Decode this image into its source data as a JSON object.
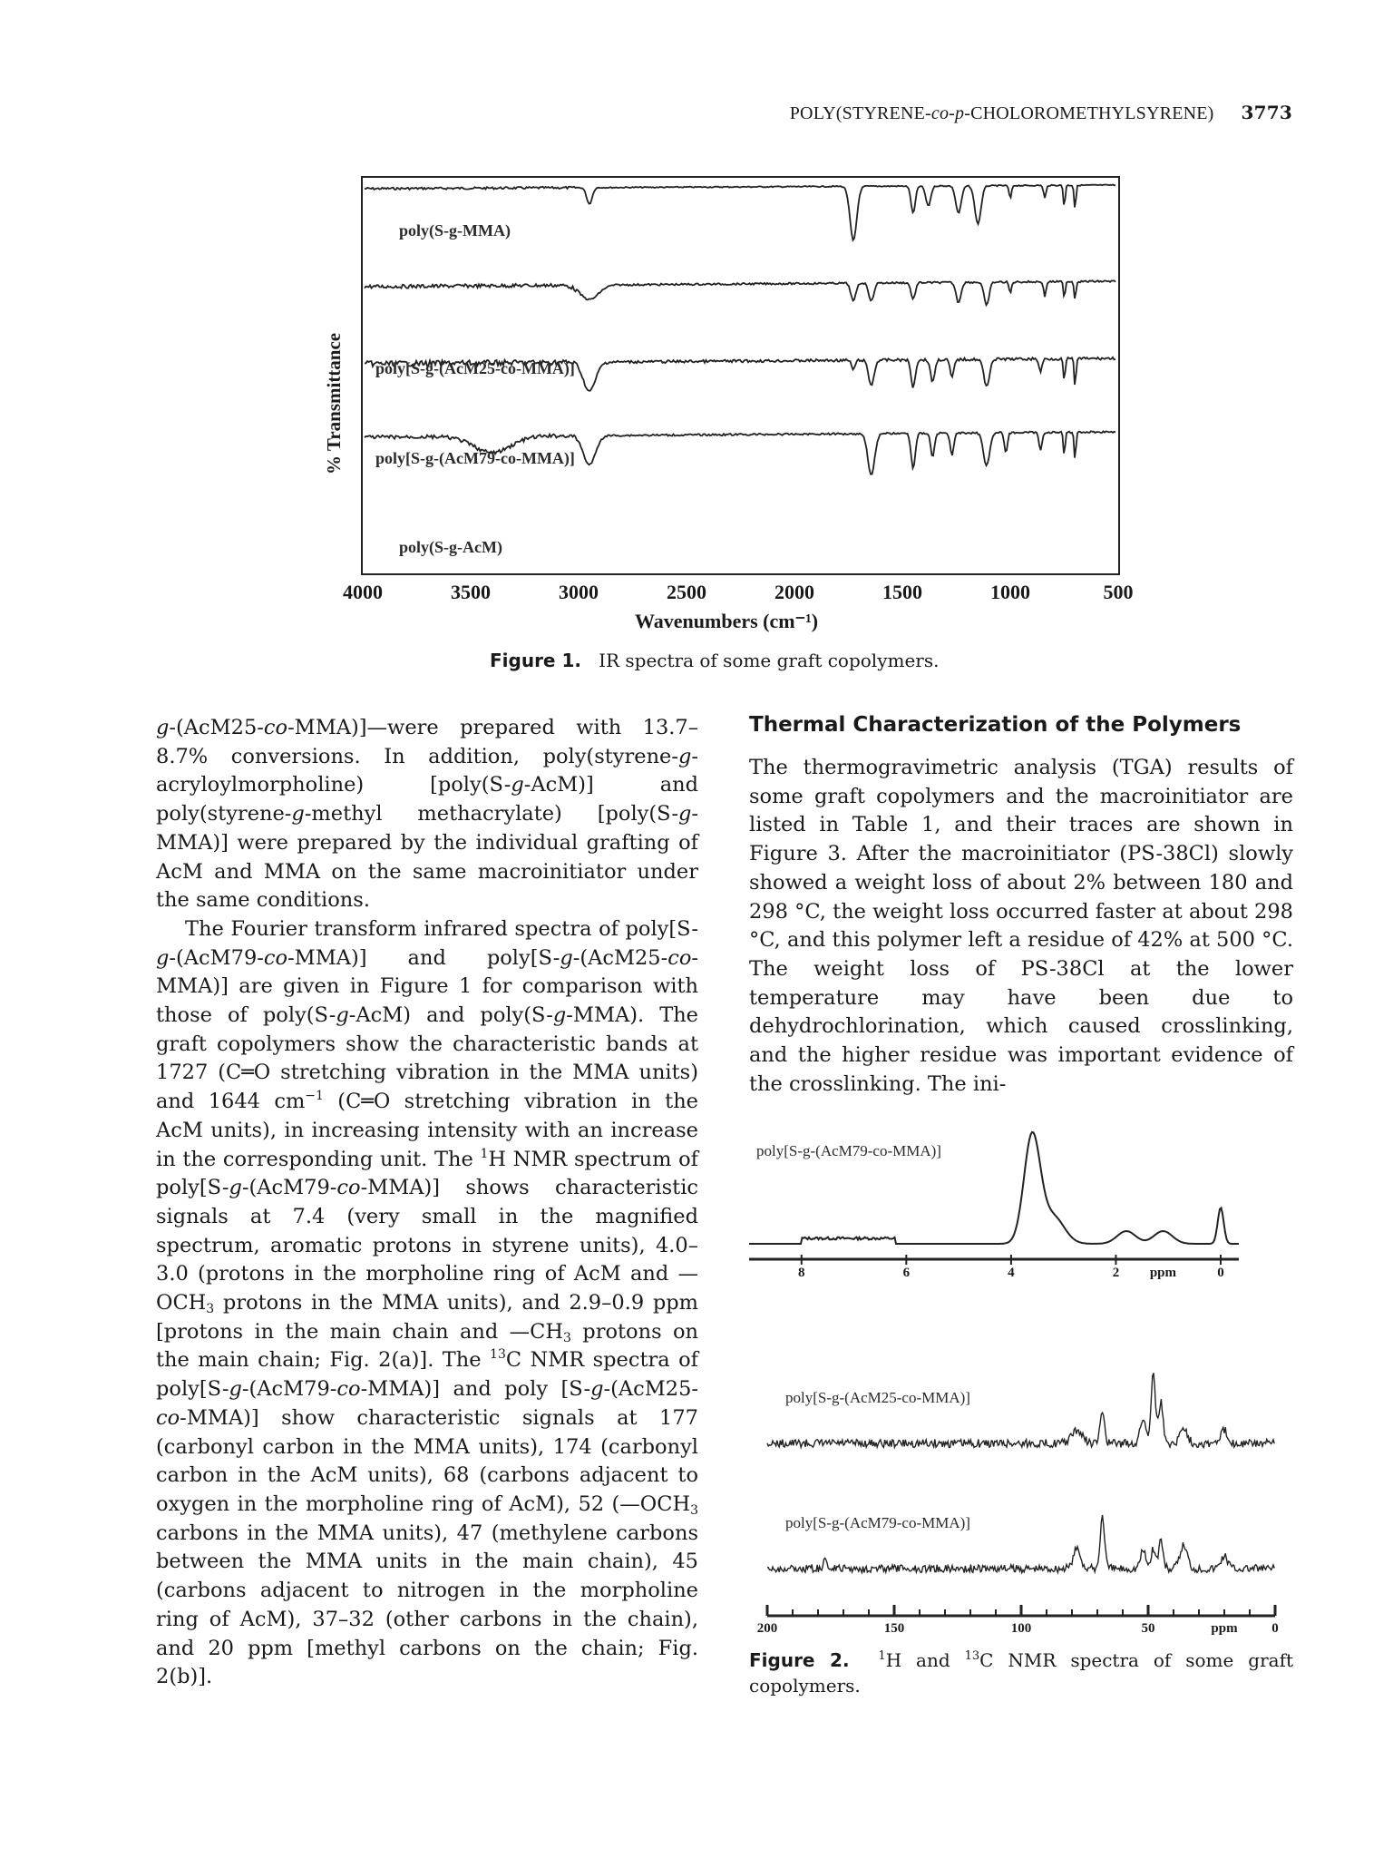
{
  "header": {
    "running_title": "POLY(STYRENE-",
    "running_title_italic": "co-p",
    "running_title_end": "-CHOLOROMETHYLSYRENE)",
    "page_number": "3773"
  },
  "figure1": {
    "caption_label": "Figure 1.",
    "caption_text": "IR spectra of some graft copolymers.",
    "chart_data": {
      "type": "line",
      "xlabel": "Wavenumbers (cm⁻¹)",
      "ylabel": "% Transmittance",
      "xlim": [
        4000,
        500
      ],
      "x_ticks": [
        "4000",
        "3500",
        "3000",
        "2500",
        "2000",
        "1500",
        "1000",
        "500"
      ],
      "series": [
        {
          "name": "poly(S-g-MMA)"
        },
        {
          "name": "poly[S-g-(AcM25-co-MMA)]"
        },
        {
          "name": "poly[S-g-(AcM79-co-MMA)]"
        },
        {
          "name": "poly(S-g-AcM)"
        }
      ]
    }
  },
  "left_column": {
    "p1": [
      {
        "t": "g",
        "i": true
      },
      {
        "t": "-(AcM25-"
      },
      {
        "t": "co",
        "i": true
      },
      {
        "t": "-MMA)]—were prepared with 13.7–8.7% conversions. In addition, poly(styrene-"
      },
      {
        "t": "g",
        "i": true
      },
      {
        "t": "-acryloylmorpholine) [poly(S-"
      },
      {
        "t": "g",
        "i": true
      },
      {
        "t": "-AcM)] and poly(styrene-"
      },
      {
        "t": "g",
        "i": true
      },
      {
        "t": "-methyl methacrylate) [poly(S-"
      },
      {
        "t": "g",
        "i": true
      },
      {
        "t": "-MMA)] were prepared by the individual grafting of AcM and MMA on the same macroinitiator under the same conditions."
      }
    ],
    "p2": [
      {
        "t": "The Fourier transform infrared spectra of poly[S-"
      },
      {
        "t": "g",
        "i": true
      },
      {
        "t": "-(AcM79-"
      },
      {
        "t": "co",
        "i": true
      },
      {
        "t": "-MMA)] and poly[S-"
      },
      {
        "t": "g",
        "i": true
      },
      {
        "t": "-(AcM25-"
      },
      {
        "t": "co",
        "i": true
      },
      {
        "t": "-MMA)] are given in Figure 1 for comparison with those of poly(S-"
      },
      {
        "t": "g",
        "i": true
      },
      {
        "t": "-AcM) and poly(S-"
      },
      {
        "t": "g",
        "i": true
      },
      {
        "t": "-MMA). The graft copolymers show the characteristic bands at 1727 (C═O stretching vibration in the MMA units) and 1644 cm"
      },
      {
        "t": "−1",
        "sup": true
      },
      {
        "t": " (C═O stretching vibration in the AcM units), in increasing intensity with an increase in the corresponding unit. The "
      },
      {
        "t": "1",
        "sup": true
      },
      {
        "t": "H NMR spectrum of poly[S-"
      },
      {
        "t": "g",
        "i": true
      },
      {
        "t": "-(AcM79-"
      },
      {
        "t": "co",
        "i": true
      },
      {
        "t": "-MMA)] shows characteristic signals at 7.4 (very small in the magnified spectrum, aromatic protons in styrene units), 4.0–3.0 (protons in the morpholine ring of AcM and —OCH"
      },
      {
        "t": "3",
        "sub": true
      },
      {
        "t": " protons in the MMA units), and 2.9–0.9 ppm [protons in the main chain and —CH"
      },
      {
        "t": "3",
        "sub": true
      },
      {
        "t": " protons on the main chain; Fig. 2(a)]. The "
      },
      {
        "t": "13",
        "sup": true
      },
      {
        "t": "C NMR spectra of poly[S-"
      },
      {
        "t": "g",
        "i": true
      },
      {
        "t": "-(AcM79-"
      },
      {
        "t": "co",
        "i": true
      },
      {
        "t": "-MMA)] and poly [S-"
      },
      {
        "t": "g",
        "i": true
      },
      {
        "t": "-(AcM25-"
      },
      {
        "t": "co",
        "i": true
      },
      {
        "t": "-MMA)] show characteristic signals at 177 (carbonyl carbon in the MMA units), 174 (carbonyl carbon in the AcM units), 68 (carbons adjacent to oxygen in the morpholine ring of AcM), 52 (—OCH"
      },
      {
        "t": "3",
        "sub": true
      },
      {
        "t": " carbons in the MMA units), 47 (methylene carbons between the MMA units in the main chain), 45 (carbons adjacent to nitrogen in the morpholine ring of AcM), 37–32 (other carbons in the chain), and 20 ppm [methyl carbons on the chain; Fig. 2(b)]."
      }
    ]
  },
  "right_column": {
    "section_title": "Thermal Characterization of the Polymers",
    "p1": [
      {
        "t": "The thermogravimetric analysis (TGA) results of some graft copolymers and the macroinitiator are listed in Table 1, and their traces are shown in Figure 3. After the macroinitiator (PS-38Cl) slowly showed a weight loss of about 2% between 180 and 298 °C, the weight loss occurred faster at about 298 °C, and this polymer left a residue of 42% at 500 °C. The weight loss of PS-38Cl at the lower temperature may have been due to dehydrochlorination, which caused crosslinking, and the higher residue was important evidence of the crosslinking. The ini-"
      }
    ]
  },
  "figure2": {
    "caption_label": "Figure 2.",
    "caption_sup1": "1",
    "caption_mid": "H and ",
    "caption_sup2": "13",
    "caption_text": "C NMR spectra of some graft copolymers.",
    "chart_data": [
      {
        "type": "line",
        "series": [
          {
            "name": "poly[S-g-(AcM79-co-MMA)]"
          }
        ],
        "xlabel": "ppm",
        "x_ticks": [
          "8",
          "6",
          "4",
          "2",
          "0"
        ],
        "xlim": [
          9,
          0
        ]
      },
      {
        "type": "line",
        "series": [
          {
            "name": "poly[S-g-(AcM25-co-MMA)]"
          },
          {
            "name": "poly[S-g-(AcM79-co-MMA)]"
          }
        ],
        "xlabel": "ppm",
        "x_ticks": [
          "200",
          "150",
          "100",
          "50",
          "0"
        ],
        "xlim": [
          200,
          0
        ]
      }
    ]
  }
}
